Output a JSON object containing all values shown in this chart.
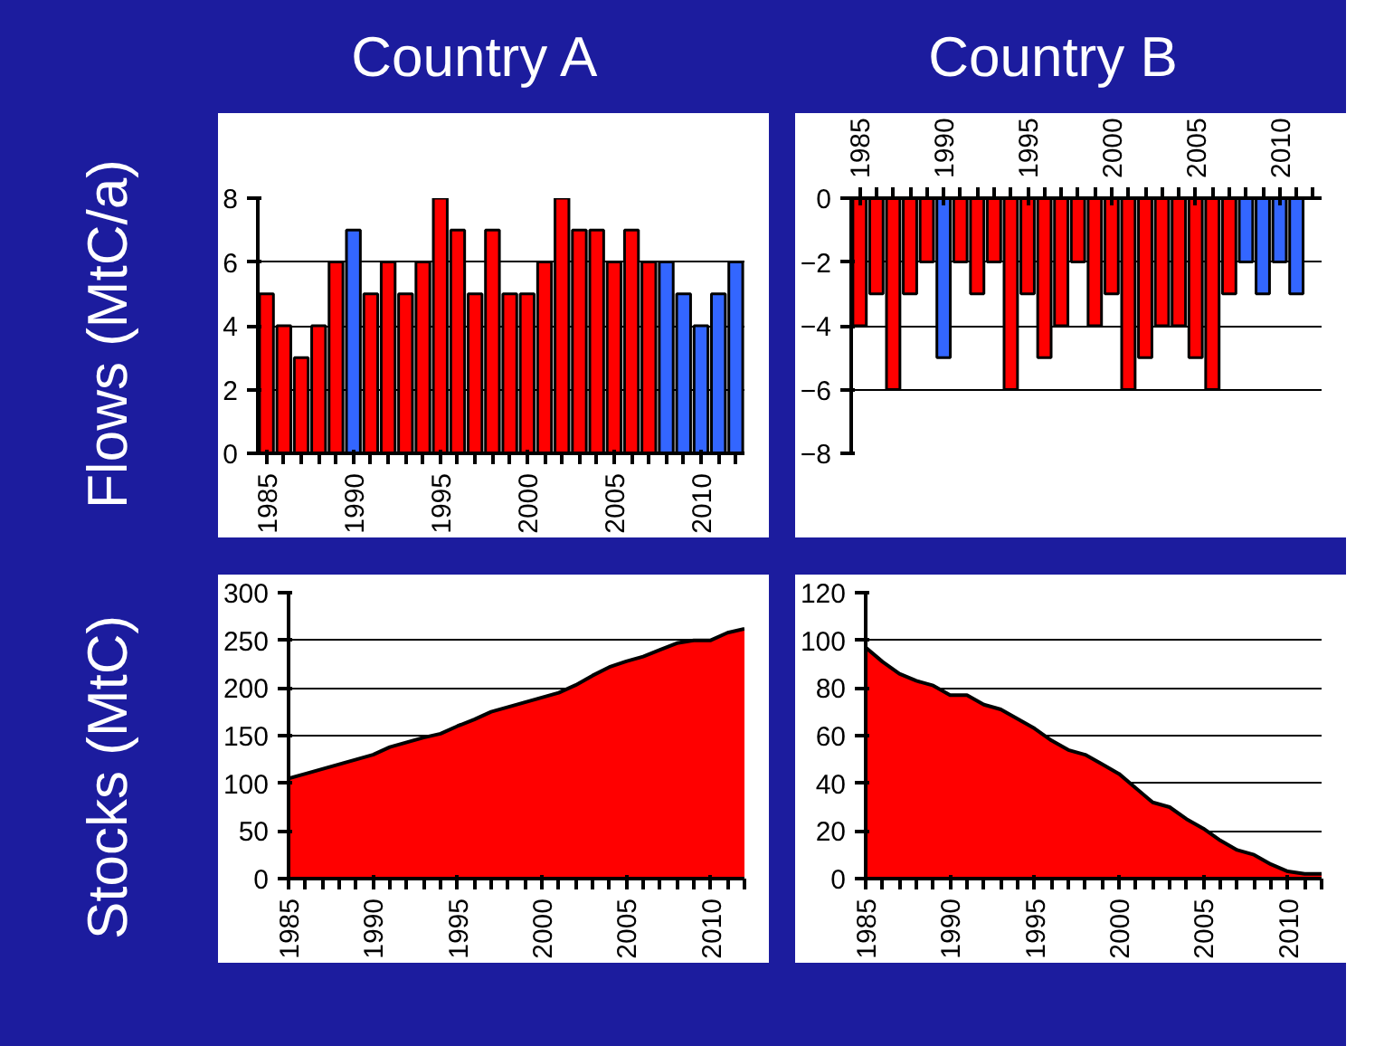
{
  "chart_data": [
    {
      "type": "bar",
      "title": "Country A",
      "ylabel": "Flows (MtC/a)",
      "x": [
        1985,
        1986,
        1987,
        1988,
        1989,
        1990,
        1991,
        1992,
        1993,
        1994,
        1995,
        1996,
        1997,
        1998,
        1999,
        2000,
        2001,
        2002,
        2003,
        2004,
        2005,
        2006,
        2007,
        2008,
        2009,
        2010,
        2011,
        2012
      ],
      "values": [
        5,
        4,
        3,
        4,
        6,
        7,
        5,
        6,
        5,
        6,
        8,
        7,
        5,
        7,
        5,
        5,
        6,
        8,
        7,
        7,
        6,
        7,
        6,
        6,
        5,
        4,
        5,
        6
      ],
      "colors": [
        "#ff0000",
        "#ff0000",
        "#ff0000",
        "#ff0000",
        "#ff0000",
        "#3366ff",
        "#ff0000",
        "#ff0000",
        "#ff0000",
        "#ff0000",
        "#ff0000",
        "#ff0000",
        "#ff0000",
        "#ff0000",
        "#ff0000",
        "#ff0000",
        "#ff0000",
        "#ff0000",
        "#ff0000",
        "#ff0000",
        "#ff0000",
        "#ff0000",
        "#ff0000",
        "#3366ff",
        "#3366ff",
        "#3366ff",
        "#3366ff",
        "#3366ff"
      ],
      "xlim": [
        1984.5,
        2012.5
      ],
      "xticks": [
        1985,
        1990,
        1995,
        2000,
        2005,
        2010
      ],
      "ylim": [
        0,
        8
      ],
      "yticks": [
        0,
        2,
        4,
        6,
        8
      ],
      "grid": "y"
    },
    {
      "type": "bar",
      "title": "Country B",
      "x": [
        1985,
        1986,
        1987,
        1988,
        1989,
        1990,
        1991,
        1992,
        1993,
        1994,
        1995,
        1996,
        1997,
        1998,
        1999,
        2000,
        2001,
        2002,
        2003,
        2004,
        2005,
        2006,
        2007,
        2008,
        2009,
        2010,
        2011
      ],
      "values": [
        -4,
        -3,
        -6,
        -3,
        -2,
        -5,
        -2,
        -3,
        -2,
        -6,
        -3,
        -5,
        -4,
        -2,
        -4,
        -3,
        -6,
        -5,
        -4,
        -4,
        -5,
        -6,
        -3,
        -2,
        -3,
        -2,
        -3
      ],
      "colors": [
        "#ff0000",
        "#ff0000",
        "#ff0000",
        "#ff0000",
        "#ff0000",
        "#3366ff",
        "#ff0000",
        "#ff0000",
        "#ff0000",
        "#ff0000",
        "#ff0000",
        "#ff0000",
        "#ff0000",
        "#ff0000",
        "#ff0000",
        "#ff0000",
        "#ff0000",
        "#ff0000",
        "#ff0000",
        "#ff0000",
        "#ff0000",
        "#ff0000",
        "#ff0000",
        "#3366ff",
        "#3366ff",
        "#3366ff",
        "#3366ff"
      ],
      "xlim": [
        1984.5,
        2012.5
      ],
      "xticks": [
        1985,
        1990,
        1995,
        2000,
        2005,
        2010
      ],
      "ylim": [
        -8,
        0
      ],
      "yticks": [
        -8,
        -6,
        -4,
        -2,
        0
      ],
      "grid": "y"
    },
    {
      "type": "area",
      "ylabel": "Stocks (MtC)",
      "x": [
        1985,
        1986,
        1987,
        1988,
        1989,
        1990,
        1991,
        1992,
        1993,
        1994,
        1995,
        1996,
        1997,
        1998,
        1999,
        2000,
        2001,
        2002,
        2003,
        2004,
        2005,
        2006,
        2007,
        2008,
        2009,
        2010,
        2011,
        2012
      ],
      "series": [
        {
          "color": "#ff0000",
          "values": [
            105,
            110,
            115,
            120,
            125,
            130,
            138,
            143,
            148,
            152,
            160,
            167,
            175,
            180,
            185,
            190,
            195,
            203,
            213,
            222,
            228,
            233,
            240,
            247,
            250,
            250,
            258,
            262
          ]
        }
      ],
      "xlim": [
        1985,
        2012
      ],
      "xticks": [
        1985,
        1990,
        1995,
        2000,
        2005,
        2010
      ],
      "ylim": [
        0,
        300
      ],
      "yticks": [
        0,
        50,
        100,
        150,
        200,
        250,
        300
      ],
      "grid": "y"
    },
    {
      "type": "area",
      "x": [
        1985,
        1986,
        1987,
        1988,
        1989,
        1990,
        1991,
        1992,
        1993,
        1994,
        1995,
        1996,
        1997,
        1998,
        1999,
        2000,
        2001,
        2002,
        2003,
        2004,
        2005,
        2006,
        2007,
        2008,
        2009,
        2010,
        2011,
        2012
      ],
      "series": [
        {
          "color": "#ff0000",
          "values": [
            97,
            91,
            86,
            83,
            81,
            77,
            77,
            73,
            71,
            67,
            63,
            58,
            54,
            52,
            48,
            44,
            38,
            32,
            30,
            25,
            21,
            16,
            12,
            10,
            6,
            3,
            2,
            2
          ]
        }
      ],
      "xlim": [
        1985,
        2012
      ],
      "xticks": [
        1985,
        1990,
        1995,
        2000,
        2005,
        2010
      ],
      "ylim": [
        0,
        120
      ],
      "yticks": [
        0,
        20,
        40,
        60,
        80,
        100,
        120
      ],
      "grid": "y"
    }
  ]
}
